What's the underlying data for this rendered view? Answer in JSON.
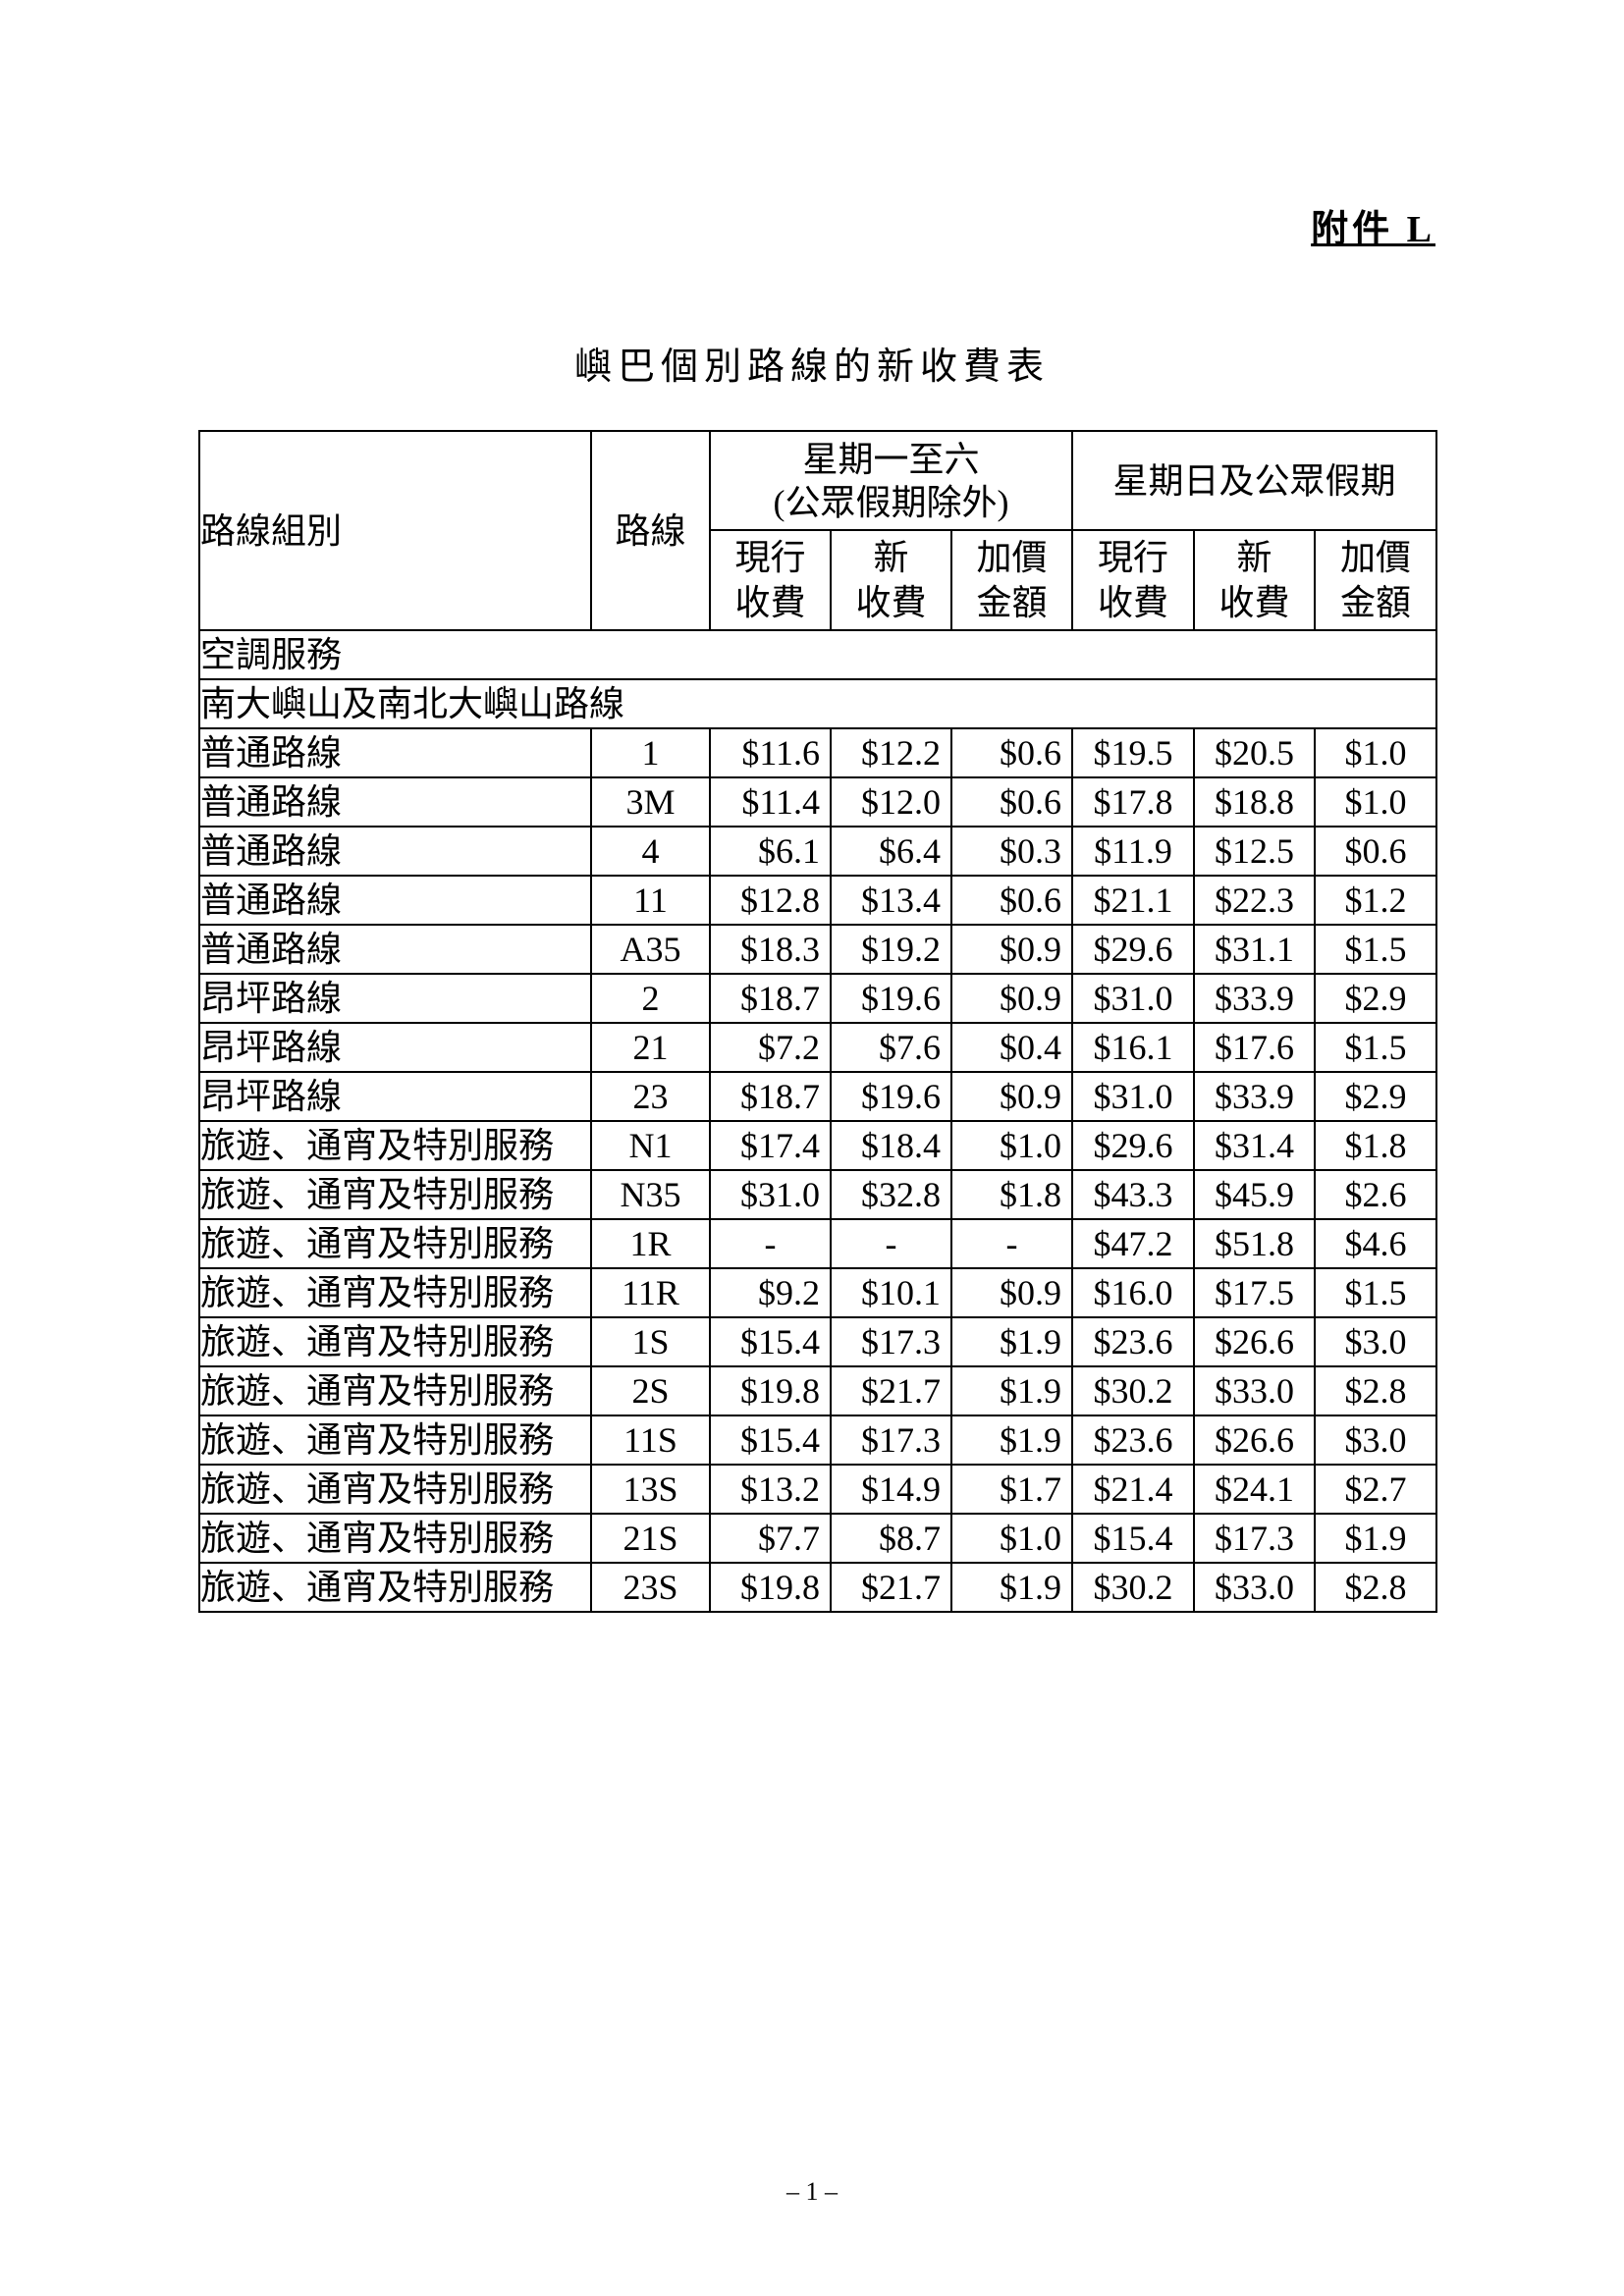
{
  "annex": "附件 L",
  "title": "嶼巴個別路線的新收費表",
  "table": {
    "headers": {
      "group": "路線組別",
      "route": "路線",
      "weekday": [
        "星期一至六",
        "(公眾假期除外)"
      ],
      "holiday": "星期日及公眾假期",
      "sub": [
        [
          "現行",
          "收費"
        ],
        [
          "新",
          "收費"
        ],
        [
          "加價",
          "金額"
        ],
        [
          "現行",
          "收費"
        ],
        [
          "新",
          "收費"
        ],
        [
          "加價",
          "金額"
        ]
      ]
    },
    "section": "空調服務",
    "subsection": "南大嶼山及南北大嶼山路線",
    "rows": [
      [
        "普通路線",
        "1",
        "$11.6",
        "$12.2",
        "$0.6",
        "$19.5",
        "$20.5",
        "$1.0"
      ],
      [
        "普通路線",
        "3M",
        "$11.4",
        "$12.0",
        "$0.6",
        "$17.8",
        "$18.8",
        "$1.0"
      ],
      [
        "普通路線",
        "4",
        "$6.1",
        "$6.4",
        "$0.3",
        "$11.9",
        "$12.5",
        "$0.6"
      ],
      [
        "普通路線",
        "11",
        "$12.8",
        "$13.4",
        "$0.6",
        "$21.1",
        "$22.3",
        "$1.2"
      ],
      [
        "普通路線",
        "A35",
        "$18.3",
        "$19.2",
        "$0.9",
        "$29.6",
        "$31.1",
        "$1.5"
      ],
      [
        "昂坪路線",
        "2",
        "$18.7",
        "$19.6",
        "$0.9",
        "$31.0",
        "$33.9",
        "$2.9"
      ],
      [
        "昂坪路線",
        "21",
        "$7.2",
        "$7.6",
        "$0.4",
        "$16.1",
        "$17.6",
        "$1.5"
      ],
      [
        "昂坪路線",
        "23",
        "$18.7",
        "$19.6",
        "$0.9",
        "$31.0",
        "$33.9",
        "$2.9"
      ],
      [
        "旅遊、通宵及特別服務",
        "N1",
        "$17.4",
        "$18.4",
        "$1.0",
        "$29.6",
        "$31.4",
        "$1.8"
      ],
      [
        "旅遊、通宵及特別服務",
        "N35",
        "$31.0",
        "$32.8",
        "$1.8",
        "$43.3",
        "$45.9",
        "$2.6"
      ],
      [
        "旅遊、通宵及特別服務",
        "1R",
        "-",
        "-",
        "-",
        "$47.2",
        "$51.8",
        "$4.6"
      ],
      [
        "旅遊、通宵及特別服務",
        "11R",
        "$9.2",
        "$10.1",
        "$0.9",
        "$16.0",
        "$17.5",
        "$1.5"
      ],
      [
        "旅遊、通宵及特別服務",
        "1S",
        "$15.4",
        "$17.3",
        "$1.9",
        "$23.6",
        "$26.6",
        "$3.0"
      ],
      [
        "旅遊、通宵及特別服務",
        "2S",
        "$19.8",
        "$21.7",
        "$1.9",
        "$30.2",
        "$33.0",
        "$2.8"
      ],
      [
        "旅遊、通宵及特別服務",
        "11S",
        "$15.4",
        "$17.3",
        "$1.9",
        "$23.6",
        "$26.6",
        "$3.0"
      ],
      [
        "旅遊、通宵及特別服務",
        "13S",
        "$13.2",
        "$14.9",
        "$1.7",
        "$21.4",
        "$24.1",
        "$2.7"
      ],
      [
        "旅遊、通宵及特別服務",
        "21S",
        "$7.7",
        "$8.7",
        "$1.0",
        "$15.4",
        "$17.3",
        "$1.9"
      ],
      [
        "旅遊、通宵及特別服務",
        "23S",
        "$19.8",
        "$21.7",
        "$1.9",
        "$30.2",
        "$33.0",
        "$2.8"
      ]
    ]
  },
  "page_number": "– 1 –"
}
